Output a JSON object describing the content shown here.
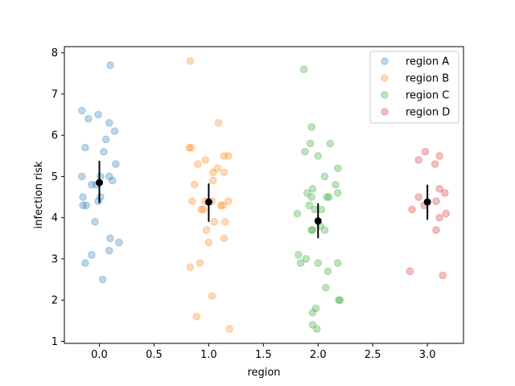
{
  "chart_data": {
    "type": "scatter",
    "title": "",
    "xlabel": "region",
    "ylabel": "infection risk",
    "xlim": [
      -0.32,
      3.33
    ],
    "ylim": [
      0.95,
      8.15
    ],
    "xticks": [
      0.0,
      0.5,
      1.0,
      1.5,
      2.0,
      2.5,
      3.0
    ],
    "xtick_labels": [
      "0.0",
      "0.5",
      "1.0",
      "1.5",
      "2.0",
      "2.5",
      "3.0"
    ],
    "yticks": [
      1,
      2,
      3,
      4,
      5,
      6,
      7,
      8
    ],
    "ytick_labels": [
      "1",
      "2",
      "3",
      "4",
      "5",
      "6",
      "7",
      "8"
    ],
    "grid": false,
    "legend_position": "top-right",
    "series": [
      {
        "name": "region A",
        "color": "#1f77b4",
        "points": [
          [
            0.1,
            7.7
          ],
          [
            -0.16,
            6.6
          ],
          [
            -0.1,
            6.4
          ],
          [
            -0.01,
            6.5
          ],
          [
            0.09,
            6.3
          ],
          [
            0.14,
            6.1
          ],
          [
            0.06,
            5.9
          ],
          [
            -0.13,
            5.7
          ],
          [
            0.04,
            5.6
          ],
          [
            0.15,
            5.3
          ],
          [
            -0.16,
            5.0
          ],
          [
            0.01,
            5.0
          ],
          [
            0.09,
            5.0
          ],
          [
            0.12,
            4.9
          ],
          [
            -0.07,
            4.8
          ],
          [
            -0.03,
            4.8
          ],
          [
            0.01,
            4.5
          ],
          [
            -0.15,
            4.5
          ],
          [
            -0.15,
            4.3
          ],
          [
            -0.12,
            4.3
          ],
          [
            -0.01,
            4.4
          ],
          [
            -0.04,
            3.9
          ],
          [
            0.1,
            3.5
          ],
          [
            0.18,
            3.4
          ],
          [
            0.09,
            3.2
          ],
          [
            -0.07,
            3.1
          ],
          [
            -0.13,
            2.9
          ],
          [
            0.03,
            2.5
          ]
        ],
        "mean": 4.85,
        "ci": [
          4.35,
          5.38
        ],
        "x_center": 0
      },
      {
        "name": "region B",
        "color": "#ff7f0e",
        "points": [
          [
            0.83,
            7.8
          ],
          [
            1.09,
            6.3
          ],
          [
            0.82,
            5.7
          ],
          [
            0.84,
            5.7
          ],
          [
            1.14,
            5.5
          ],
          [
            1.18,
            5.5
          ],
          [
            0.97,
            5.4
          ],
          [
            0.9,
            5.3
          ],
          [
            1.08,
            5.2
          ],
          [
            1.04,
            5.1
          ],
          [
            1.14,
            5.1
          ],
          [
            1.04,
            4.9
          ],
          [
            0.87,
            4.8
          ],
          [
            0.85,
            4.4
          ],
          [
            0.97,
            4.4
          ],
          [
            1.03,
            4.4
          ],
          [
            1.18,
            4.4
          ],
          [
            1.11,
            4.3
          ],
          [
            1.13,
            4.3
          ],
          [
            0.93,
            4.2
          ],
          [
            0.95,
            4.2
          ],
          [
            1.05,
            3.9
          ],
          [
            1.15,
            3.9
          ],
          [
            0.98,
            3.7
          ],
          [
            1.14,
            3.5
          ],
          [
            1.0,
            3.4
          ],
          [
            0.92,
            2.9
          ],
          [
            0.83,
            2.8
          ],
          [
            1.03,
            2.1
          ],
          [
            0.89,
            1.6
          ],
          [
            1.19,
            1.3
          ]
        ],
        "mean": 4.38,
        "ci": [
          3.9,
          4.83
        ],
        "x_center": 1
      },
      {
        "name": "region C",
        "color": "#2ca02c",
        "points": [
          [
            1.87,
            7.6
          ],
          [
            1.94,
            6.2
          ],
          [
            1.93,
            5.8
          ],
          [
            2.11,
            5.8
          ],
          [
            1.88,
            5.6
          ],
          [
            2.0,
            5.5
          ],
          [
            2.18,
            5.2
          ],
          [
            2.06,
            5.0
          ],
          [
            2.16,
            4.8
          ],
          [
            1.95,
            4.7
          ],
          [
            1.9,
            4.6
          ],
          [
            2.18,
            4.6
          ],
          [
            1.94,
            4.5
          ],
          [
            2.08,
            4.5
          ],
          [
            2.1,
            4.5
          ],
          [
            1.92,
            4.3
          ],
          [
            1.97,
            4.2
          ],
          [
            2.03,
            4.2
          ],
          [
            1.81,
            4.1
          ],
          [
            2.02,
            3.8
          ],
          [
            1.94,
            3.7
          ],
          [
            1.95,
            3.7
          ],
          [
            2.06,
            3.7
          ],
          [
            2.07,
            2.3
          ],
          [
            1.82,
            3.1
          ],
          [
            1.89,
            3.0
          ],
          [
            1.84,
            2.9
          ],
          [
            2.0,
            2.9
          ],
          [
            2.18,
            2.9
          ],
          [
            2.09,
            2.7
          ],
          [
            2.19,
            2.0
          ],
          [
            2.2,
            2.0
          ],
          [
            1.98,
            1.8
          ],
          [
            1.95,
            1.7
          ],
          [
            1.95,
            1.4
          ],
          [
            1.99,
            1.3
          ]
        ],
        "mean": 3.92,
        "ci": [
          3.5,
          4.35
        ],
        "x_center": 2
      },
      {
        "name": "region D",
        "color": "#d62728",
        "points": [
          [
            2.98,
            5.6
          ],
          [
            3.11,
            5.5
          ],
          [
            2.92,
            5.4
          ],
          [
            3.07,
            5.3
          ],
          [
            3.11,
            4.7
          ],
          [
            3.16,
            4.6
          ],
          [
            2.92,
            4.5
          ],
          [
            3.08,
            4.4
          ],
          [
            2.97,
            4.3
          ],
          [
            2.86,
            4.2
          ],
          [
            3.17,
            4.1
          ],
          [
            3.11,
            4.0
          ],
          [
            3.08,
            3.7
          ],
          [
            2.84,
            2.7
          ],
          [
            3.14,
            2.6
          ]
        ],
        "mean": 4.38,
        "ci": [
          3.95,
          4.8
        ],
        "x_center": 3
      }
    ]
  }
}
